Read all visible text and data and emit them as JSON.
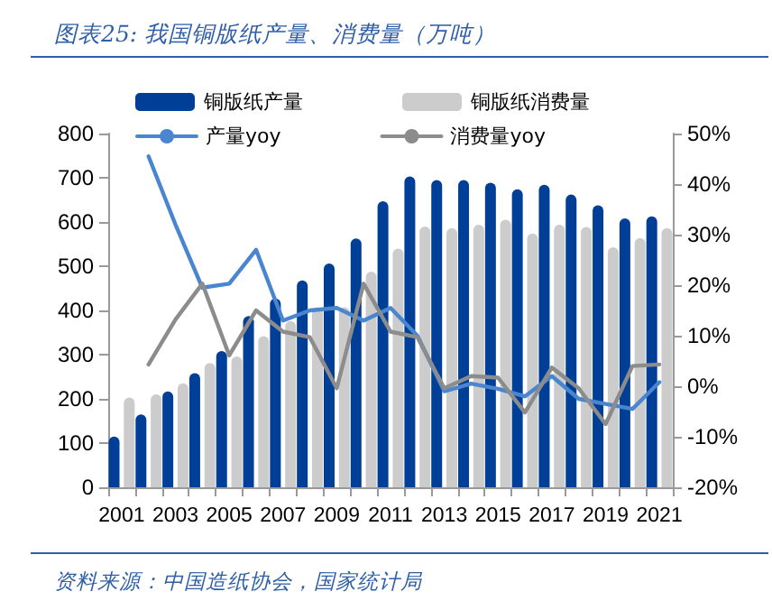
{
  "chart_data": {
    "type": "bar",
    "title": "图表25: 我国铜版纸产量、消费量（万吨）",
    "categories": [
      "2001",
      null,
      "2003",
      null,
      "2005",
      null,
      "2007",
      null,
      "2009",
      null,
      "2011",
      null,
      "2013",
      null,
      "2015",
      null,
      "2017",
      null,
      "2019",
      null,
      "2021"
    ],
    "series": [
      {
        "name": "铜版纸产量",
        "color": "#003f98",
        "values": [
          115,
          165,
          217,
          258,
          308,
          387,
          427,
          468,
          506,
          563,
          647,
          703,
          695,
          695,
          689,
          674,
          684,
          662,
          638,
          608,
          613
        ]
      },
      {
        "name": "铜版纸消费量",
        "color": "#cccccc",
        "values": [
          203,
          210,
          235,
          281,
          296,
          342,
          376,
          407,
          407,
          488,
          540,
          590,
          586,
          594,
          605,
          574,
          594,
          589,
          543,
          564,
          586
        ]
      },
      {
        "name": "产量yoy",
        "type": "line",
        "axis": "y2",
        "color": "#4a86cf",
        "values": [
          null,
          45.5,
          32,
          19.5,
          20.3,
          27,
          13,
          15,
          15.5,
          13,
          15.5,
          10,
          -1,
          0.5,
          -0.5,
          -2,
          2,
          -2.5,
          -3.5,
          -4.5,
          0.8
        ]
      },
      {
        "name": "消费量yoy",
        "type": "line",
        "axis": "y2",
        "color": "#8c8c8c",
        "values": [
          null,
          4.3,
          13.2,
          20.3,
          6.1,
          15,
          10.8,
          9.7,
          -0.4,
          20.3,
          10.8,
          9.7,
          -0.4,
          2,
          1.7,
          -5.2,
          3.7,
          -0.4,
          -7.5,
          4,
          4.3
        ]
      }
    ],
    "ylim": [
      0,
      800
    ],
    "yticks": [
      0,
      100,
      200,
      300,
      400,
      500,
      600,
      700,
      800
    ],
    "y2lim": [
      -20,
      50
    ],
    "y2ticks": [
      {
        "value": -20,
        "label": "-20%"
      },
      {
        "value": -10,
        "label": "-10%"
      },
      {
        "value": 0,
        "label": "0%"
      },
      {
        "value": 10,
        "label": "10%"
      },
      {
        "value": 20,
        "label": "20%"
      },
      {
        "value": 30,
        "label": "30%"
      },
      {
        "value": 40,
        "label": "40%"
      },
      {
        "value": 50,
        "label": "50%"
      }
    ],
    "grid": false,
    "legend": "top",
    "marker": "none",
    "line_style": "solid",
    "annotations": [
      "资料来源：中国造纸协会，国家统计局"
    ]
  }
}
